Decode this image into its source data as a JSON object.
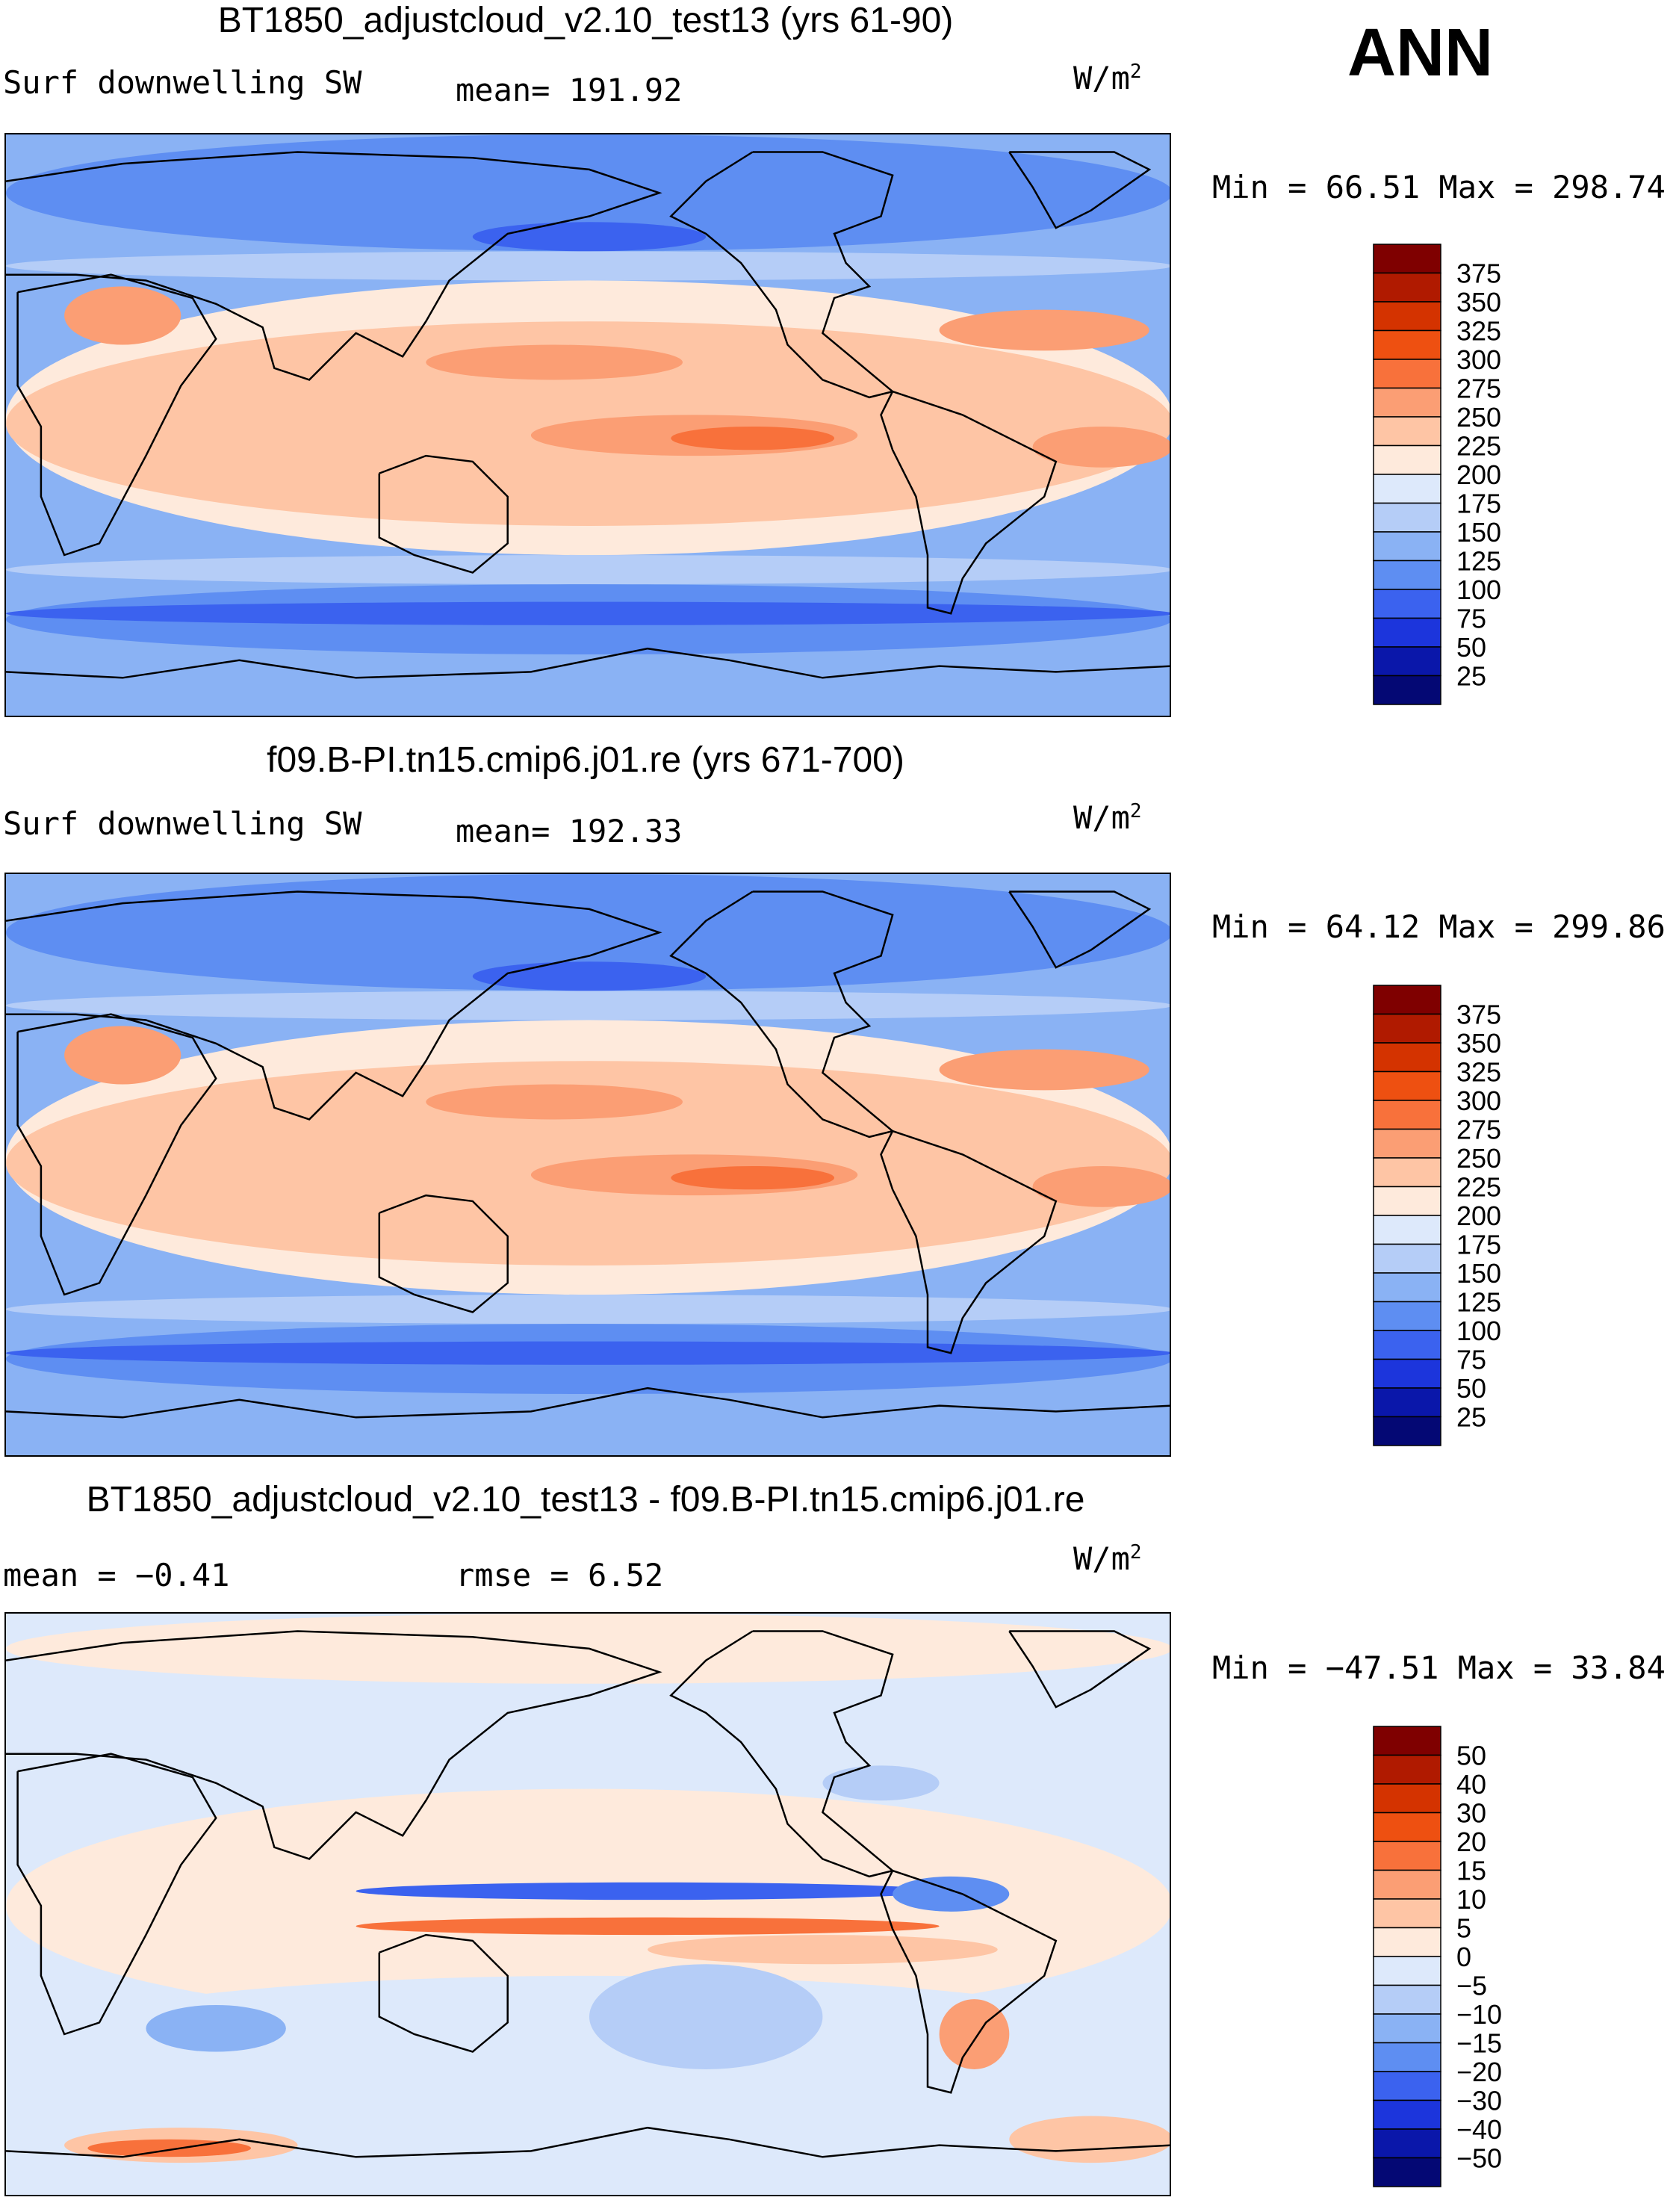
{
  "season": "ANN",
  "chart_data": [
    {
      "type": "heatmap",
      "title": "BT1850_adjustcloud_v2.10_test13 (yrs 61-90)",
      "variable": "Surf downwelling SW",
      "stat_left": "",
      "stat_center": "mean= 191.92",
      "units": "W/m",
      "units_exp": "2",
      "min_max": "Min =   66.51 Max = 298.74",
      "min": 66.51,
      "max": 298.74,
      "mean": 191.92,
      "colorbar": {
        "levels": [
          "375",
          "350",
          "325",
          "300",
          "275",
          "250",
          "225",
          "200",
          "175",
          "150",
          "125",
          "100",
          "75",
          "50",
          "25"
        ],
        "colors": [
          "#7f0000",
          "#b01a00",
          "#d43300",
          "#ee5011",
          "#f8713b",
          "#fb9e74",
          "#fec5a5",
          "#feeadc",
          "#dde9fb",
          "#b5cdf7",
          "#8ab2f4",
          "#5e8ef2",
          "#3b62ef",
          "#1c35dc",
          "#0a17aa",
          "#040874"
        ]
      }
    },
    {
      "type": "heatmap",
      "title": "f09.B-PI.tn15.cmip6.j01.re (yrs 671-700)",
      "variable": "Surf downwelling SW",
      "stat_left": "",
      "stat_center": "mean= 192.33",
      "units": "W/m",
      "units_exp": "2",
      "min_max": "Min =   64.12 Max = 299.86",
      "min": 64.12,
      "max": 299.86,
      "mean": 192.33,
      "colorbar": {
        "levels": [
          "375",
          "350",
          "325",
          "300",
          "275",
          "250",
          "225",
          "200",
          "175",
          "150",
          "125",
          "100",
          "75",
          "50",
          "25"
        ],
        "colors": [
          "#7f0000",
          "#b01a00",
          "#d43300",
          "#ee5011",
          "#f8713b",
          "#fb9e74",
          "#fec5a5",
          "#feeadc",
          "#dde9fb",
          "#b5cdf7",
          "#8ab2f4",
          "#5e8ef2",
          "#3b62ef",
          "#1c35dc",
          "#0a17aa",
          "#040874"
        ]
      }
    },
    {
      "type": "heatmap",
      "title": "BT1850_adjustcloud_v2.10_test13 - f09.B-PI.tn15.cmip6.j01.re",
      "variable": "",
      "stat_left": "mean =   −0.41",
      "stat_center": "rmse =    6.52",
      "units": "W/m",
      "units_exp": "2",
      "min_max": "Min = −47.51 Max =   33.84",
      "min": -47.51,
      "max": 33.84,
      "mean": -0.41,
      "rmse": 6.52,
      "colorbar": {
        "levels": [
          "50",
          "40",
          "30",
          "20",
          "15",
          "10",
          "5",
          "0",
          "−5",
          "−10",
          "−15",
          "−20",
          "−30",
          "−40",
          "−50"
        ],
        "colors": [
          "#7f0000",
          "#b01a00",
          "#d43300",
          "#ee5011",
          "#f8713b",
          "#fb9e74",
          "#fec5a5",
          "#feeadc",
          "#dde9fb",
          "#b5cdf7",
          "#8ab2f4",
          "#5e8ef2",
          "#3b62ef",
          "#1c35dc",
          "#0a17aa",
          "#040874"
        ]
      }
    }
  ]
}
